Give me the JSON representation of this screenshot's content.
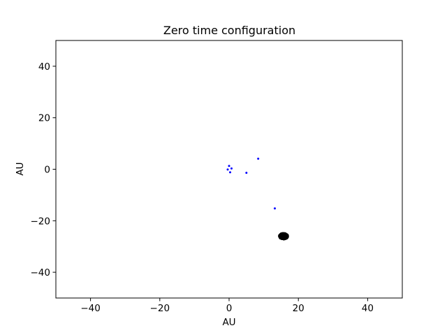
{
  "chart_data": {
    "type": "scatter",
    "title": "Zero time configuration",
    "xlabel": "AU",
    "ylabel": "AU",
    "xlim": [
      -50,
      50
    ],
    "ylim": [
      -50,
      50
    ],
    "xticks": [
      -40,
      -20,
      0,
      20,
      40
    ],
    "yticks": [
      -40,
      -20,
      0,
      20,
      40
    ],
    "xtick_labels": [
      "−40",
      "−20",
      "0",
      "20",
      "40"
    ],
    "ytick_labels": [
      "−40",
      "−20",
      "0",
      "20",
      "40"
    ],
    "grid": false,
    "series": [
      {
        "color": "#0000ff",
        "marker": "point",
        "points": [
          [
            0.0,
            1.3
          ],
          [
            -0.4,
            -0.1
          ],
          [
            0.7,
            0.3
          ],
          [
            0.3,
            -1.2
          ],
          [
            5.0,
            -1.4
          ],
          [
            8.4,
            4.1
          ],
          [
            13.2,
            -15.2
          ]
        ]
      },
      {
        "color": "#000000",
        "marker": "cluster",
        "center": [
          15.7,
          -26.0
        ],
        "spread": [
          1.3,
          1.2
        ],
        "count": 400
      }
    ]
  }
}
